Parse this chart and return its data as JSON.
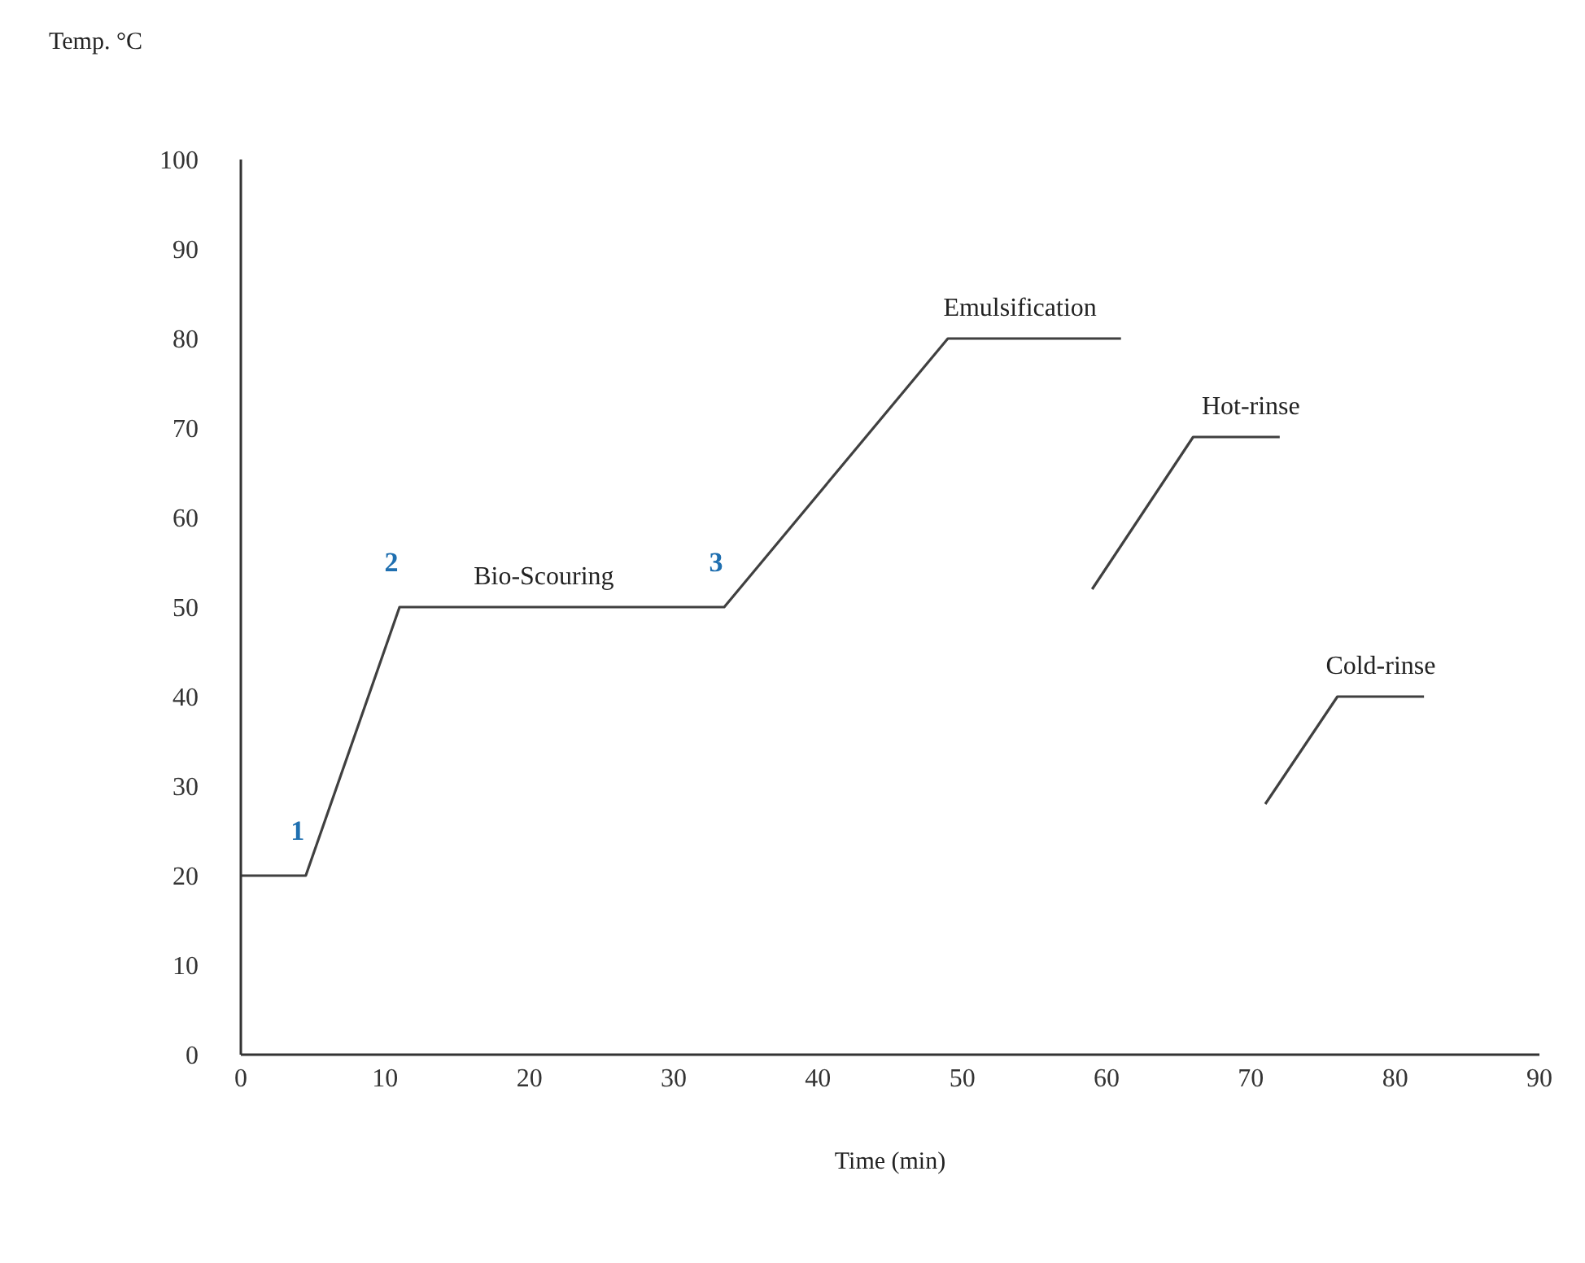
{
  "chart_data": {
    "type": "line",
    "xlabel": "Time  (min)",
    "ylabel": "Temp. °C",
    "series": [
      {
        "color": "#404040",
        "x": [
          0,
          4.5,
          11,
          33.5,
          49,
          61
        ],
        "values": [
          20,
          20,
          50,
          50,
          80,
          80
        ]
      },
      {
        "color": "#404040",
        "x": [
          59,
          66,
          72
        ],
        "values": [
          52,
          69,
          69
        ]
      },
      {
        "color": "#404040",
        "x": [
          71,
          76,
          82
        ],
        "values": [
          28,
          40,
          40
        ]
      }
    ],
    "xlim": [
      0,
      90
    ],
    "xticks": [
      0,
      10,
      20,
      30,
      40,
      50,
      60,
      70,
      80,
      90
    ],
    "ylim": [
      0,
      100
    ],
    "yticks": [
      0,
      10,
      20,
      30,
      40,
      50,
      60,
      70,
      80,
      90,
      100
    ],
    "grid": false,
    "legend": false,
    "marker": "none",
    "line_style": "solid",
    "annotations": [
      {
        "text": "1",
        "x": 4.5,
        "y": 20
      },
      {
        "text": "2",
        "x": 11,
        "y": 50
      },
      {
        "text": "3",
        "x": 33.5,
        "y": 50
      },
      {
        "text": "Bio-Scouring",
        "x": 21,
        "y": 50
      },
      {
        "text": "Emulsification",
        "x": 54,
        "y": 80
      },
      {
        "text": "Hot-rinse",
        "x": 70,
        "y": 69
      },
      {
        "text": "Cold-rinse",
        "x": 79,
        "y": 40
      }
    ]
  }
}
